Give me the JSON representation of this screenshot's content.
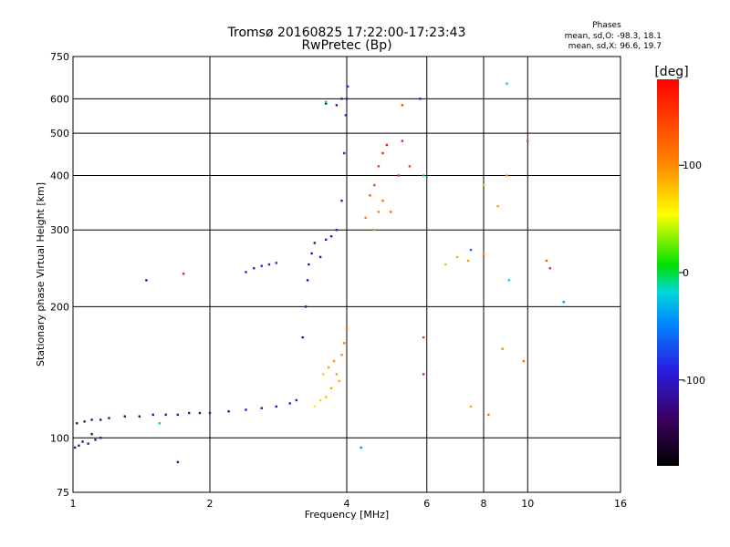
{
  "chart_data": {
    "type": "scatter",
    "title": "Tromsø 20160825 17:22:00-17:23:43",
    "subtitle": "RwPretec (Bp)",
    "xlabel": "Frequency [MHz]",
    "ylabel": "Stationary phase Virtual Height [km]",
    "x_scale": "log",
    "y_scale": "log",
    "xlim": [
      1,
      16
    ],
    "ylim": [
      75,
      750
    ],
    "x_ticks": [
      1,
      2,
      4,
      6,
      8,
      10,
      16
    ],
    "x_tick_labels": [
      "1",
      "2",
      "4",
      "6",
      "8",
      "10",
      "16"
    ],
    "y_ticks": [
      75,
      100,
      200,
      300,
      400,
      500,
      600,
      750
    ],
    "y_tick_labels": [
      "75",
      "100",
      "200",
      "300",
      "400",
      "500",
      "600",
      "750"
    ],
    "grid": true,
    "stats": {
      "heading": "Phases",
      "line_o": "mean, sd,O: -98.3, 18.1",
      "line_x": "mean, sd,X:  96.6, 19.7"
    },
    "colorbar": {
      "label": "[deg]",
      "range": [
        -180,
        180
      ],
      "ticks": [
        100,
        0,
        -100
      ],
      "tick_labels": [
        "100",
        "0",
        "-100"
      ]
    },
    "series": [
      {
        "color_by": "phase_deg",
        "points": [
          [
            1.01,
            95,
            -120
          ],
          [
            1.03,
            96,
            -115
          ],
          [
            1.05,
            98,
            -120
          ],
          [
            1.08,
            97,
            -110
          ],
          [
            1.12,
            99,
            -118
          ],
          [
            1.15,
            100,
            -112
          ],
          [
            1.1,
            102,
            -120
          ],
          [
            1.02,
            108,
            -125
          ],
          [
            1.06,
            109,
            -122
          ],
          [
            1.1,
            110,
            -120
          ],
          [
            1.15,
            110,
            -118
          ],
          [
            1.2,
            111,
            -123
          ],
          [
            1.3,
            112,
            -120
          ],
          [
            1.4,
            112,
            -118
          ],
          [
            1.5,
            113,
            -121
          ],
          [
            1.6,
            113,
            -119
          ],
          [
            1.7,
            113,
            -120
          ],
          [
            1.8,
            114,
            -119
          ],
          [
            1.9,
            114,
            -118
          ],
          [
            2.0,
            114,
            -117
          ],
          [
            2.2,
            115,
            -113
          ],
          [
            2.4,
            116,
            -108
          ],
          [
            2.6,
            117,
            -104
          ],
          [
            2.8,
            118,
            -100
          ],
          [
            3.0,
            120,
            -95
          ],
          [
            3.1,
            122,
            -92
          ],
          [
            3.2,
            170,
            -122
          ],
          [
            3.25,
            200,
            -120
          ],
          [
            3.28,
            230,
            -118
          ],
          [
            3.3,
            250,
            -115
          ],
          [
            3.35,
            265,
            -112
          ],
          [
            3.4,
            280,
            -110
          ],
          [
            3.5,
            260,
            -105
          ],
          [
            3.6,
            285,
            -108
          ],
          [
            3.7,
            290,
            -100
          ],
          [
            3.8,
            300,
            -95
          ],
          [
            3.9,
            350,
            -92
          ],
          [
            3.95,
            450,
            -95
          ],
          [
            4.0,
            600,
            -98
          ],
          [
            4.02,
            640,
            -99
          ],
          [
            3.98,
            550,
            -100
          ],
          [
            3.9,
            600,
            -110
          ],
          [
            3.8,
            580,
            -115
          ],
          [
            3.6,
            585,
            -118
          ],
          [
            2.4,
            240,
            -90
          ],
          [
            2.5,
            245,
            -88
          ],
          [
            2.6,
            248,
            -85
          ],
          [
            2.7,
            250,
            -87
          ],
          [
            2.8,
            252,
            -85
          ],
          [
            3.4,
            118,
            60
          ],
          [
            3.5,
            122,
            70
          ],
          [
            3.6,
            124,
            80
          ],
          [
            3.7,
            130,
            90
          ],
          [
            3.8,
            140,
            95
          ],
          [
            3.9,
            155,
            100
          ],
          [
            3.95,
            165,
            110
          ],
          [
            4.0,
            178,
            120
          ],
          [
            3.75,
            150,
            100
          ],
          [
            3.65,
            145,
            90
          ],
          [
            3.85,
            135,
            85
          ],
          [
            3.55,
            140,
            75
          ],
          [
            4.4,
            320,
            110
          ],
          [
            4.5,
            360,
            130
          ],
          [
            4.6,
            380,
            140
          ],
          [
            4.7,
            420,
            150
          ],
          [
            4.8,
            450,
            160
          ],
          [
            4.9,
            470,
            170
          ],
          [
            4.6,
            300,
            95
          ],
          [
            4.7,
            330,
            105
          ],
          [
            4.8,
            350,
            115
          ],
          [
            5.0,
            330,
            120
          ],
          [
            5.2,
            400,
            160
          ],
          [
            5.3,
            480,
            165
          ],
          [
            5.5,
            420,
            150
          ],
          [
            5.9,
            140,
            165
          ],
          [
            5.9,
            170,
            150
          ],
          [
            6.6,
            250,
            80
          ],
          [
            7.0,
            260,
            85
          ],
          [
            7.4,
            255,
            95
          ],
          [
            8.0,
            265,
            100
          ],
          [
            8.6,
            340,
            90
          ],
          [
            8.8,
            160,
            100
          ],
          [
            9.0,
            400,
            95
          ],
          [
            10.0,
            480,
            140
          ],
          [
            9.8,
            150,
            120
          ],
          [
            11.0,
            255,
            130
          ],
          [
            11.2,
            245,
            160
          ],
          [
            12.0,
            205,
            -40
          ],
          [
            9.0,
            650,
            -20
          ],
          [
            7.5,
            270,
            -60
          ],
          [
            5.9,
            400,
            -5
          ],
          [
            5.8,
            600,
            -105
          ],
          [
            3.6,
            590,
            0
          ],
          [
            5.3,
            580,
            145
          ],
          [
            8.0,
            380,
            30
          ],
          [
            9.1,
            230,
            -20
          ],
          [
            1.55,
            108,
            -10
          ],
          [
            1.7,
            88,
            -110
          ],
          [
            1.45,
            230,
            -120
          ],
          [
            1.75,
            238,
            170
          ],
          [
            4.3,
            95,
            -50
          ],
          [
            7.5,
            118,
            90
          ],
          [
            8.2,
            113,
            120
          ]
        ]
      }
    ]
  }
}
